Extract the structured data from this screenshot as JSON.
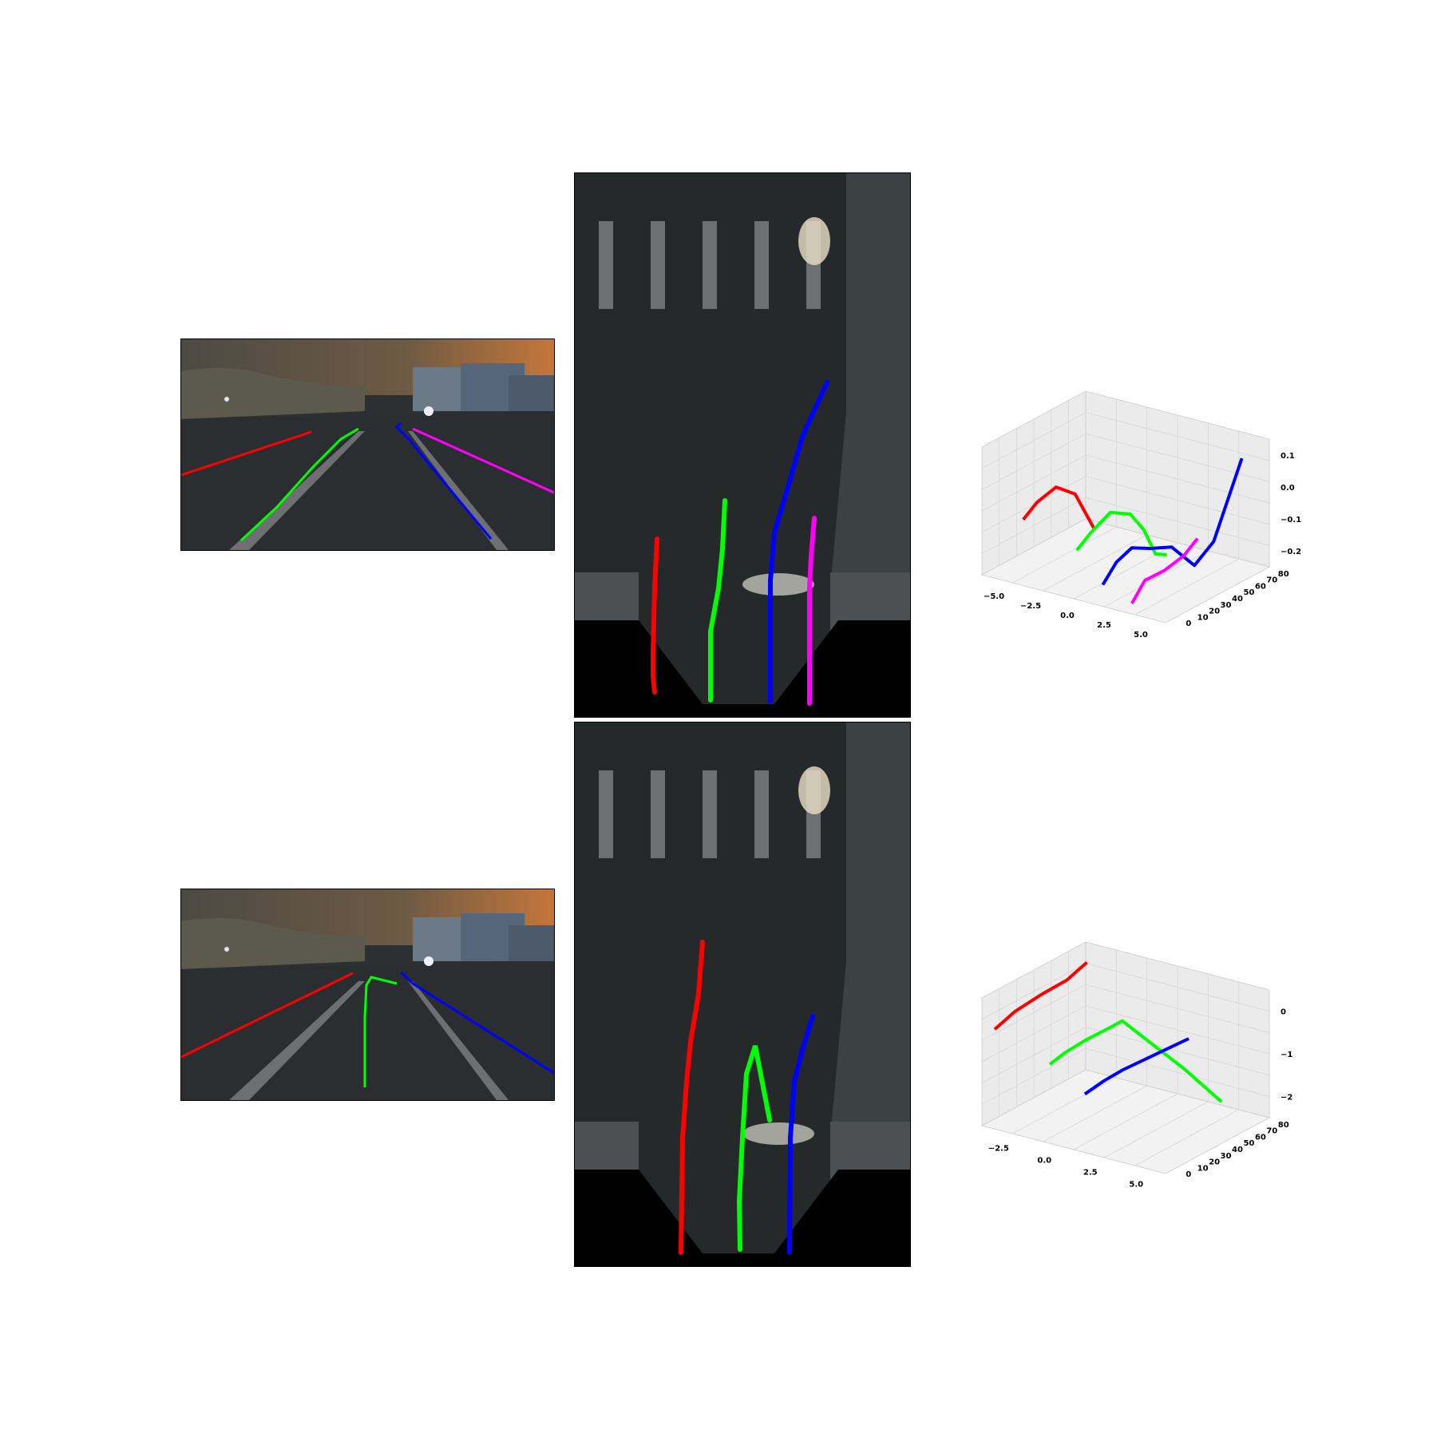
{
  "colors": {
    "red": "#ff0000",
    "green": "#00ff00",
    "blue": "#0000ff",
    "magenta": "#ff00ff"
  },
  "chart_data": [
    {
      "type": "line3d",
      "title": "",
      "xticks": [
        "−5.0",
        "−2.5",
        "0.0",
        "2.5",
        "5.0"
      ],
      "yticks": [
        "0",
        "10",
        "20",
        "30",
        "40",
        "50",
        "60",
        "70",
        "80"
      ],
      "zticks": [
        "0.1",
        "0.0",
        "−0.1",
        "−0.2"
      ],
      "xlim": [
        -6,
        6
      ],
      "ylim": [
        0,
        85
      ],
      "zlim": [
        -0.32,
        0.14
      ],
      "series": [
        {
          "color": "#ff0000",
          "points": [
            [
              -3.7,
              5,
              -0.1
            ],
            [
              -3.6,
              15,
              -0.06
            ],
            [
              -3.55,
              30,
              -0.04
            ],
            [
              -3.5,
              45,
              -0.1
            ],
            [
              -3.45,
              60,
              -0.26
            ]
          ]
        },
        {
          "color": "#00ff00",
          "points": [
            [
              -0.2,
              5,
              -0.16
            ],
            [
              -0.1,
              15,
              -0.12
            ],
            [
              0.0,
              30,
              -0.08
            ],
            [
              0.1,
              45,
              -0.12
            ],
            [
              0.2,
              55,
              -0.2
            ],
            [
              0.4,
              62,
              -0.3
            ],
            [
              0.5,
              70,
              -0.35
            ]
          ]
        },
        {
          "color": "#0000ff",
          "points": [
            [
              1.5,
              5,
              -0.26
            ],
            [
              1.6,
              15,
              -0.2
            ],
            [
              1.8,
              25,
              -0.17
            ],
            [
              2.2,
              35,
              -0.19
            ],
            [
              2.8,
              45,
              -0.2
            ],
            [
              3.5,
              55,
              -0.28
            ],
            [
              4.2,
              62,
              -0.2
            ],
            [
              5.0,
              75,
              0.08
            ]
          ]
        },
        {
          "color": "#ff00ff",
          "points": [
            [
              3.4,
              5,
              -0.3
            ],
            [
              3.45,
              15,
              -0.24
            ],
            [
              3.5,
              30,
              -0.24
            ],
            [
              3.6,
              45,
              -0.22
            ],
            [
              3.7,
              55,
              -0.18
            ]
          ]
        }
      ]
    },
    {
      "type": "line3d",
      "title": "",
      "xticks": [
        "−2.5",
        "0.0",
        "2.5",
        "5.0"
      ],
      "yticks": [
        "0",
        "10",
        "20",
        "30",
        "40",
        "50",
        "60",
        "70",
        "80"
      ],
      "zticks": [
        "0",
        "−1",
        "−2"
      ],
      "xlim": [
        -4,
        7
      ],
      "ylim": [
        0,
        85
      ],
      "zlim": [
        -2.8,
        0.3
      ],
      "series": [
        {
          "color": "#ff0000",
          "points": [
            [
              -3.6,
              5,
              -0.5
            ],
            [
              -3.5,
              20,
              -0.3
            ],
            [
              -3.4,
              40,
              -0.2
            ],
            [
              -3.3,
              60,
              -0.15
            ],
            [
              -3.2,
              75,
              0.05
            ]
          ]
        },
        {
          "color": "#00ff00",
          "points": [
            [
              -0.3,
              5,
              -1.0
            ],
            [
              -0.1,
              15,
              -0.85
            ],
            [
              0.1,
              30,
              -0.75
            ],
            [
              0.3,
              45,
              -0.7
            ],
            [
              0.6,
              52,
              -0.6
            ],
            [
              1.5,
              60,
              -1.1
            ],
            [
              3.0,
              70,
              -1.8
            ],
            [
              4.5,
              80,
              -2.6
            ]
          ]
        },
        {
          "color": "#0000ff",
          "points": [
            [
              1.8,
              5,
              -1.5
            ],
            [
              2.2,
              15,
              -1.3
            ],
            [
              2.6,
              25,
              -1.15
            ],
            [
              3.2,
              40,
              -1.0
            ],
            [
              4.0,
              60,
              -0.8
            ]
          ]
        }
      ]
    }
  ]
}
